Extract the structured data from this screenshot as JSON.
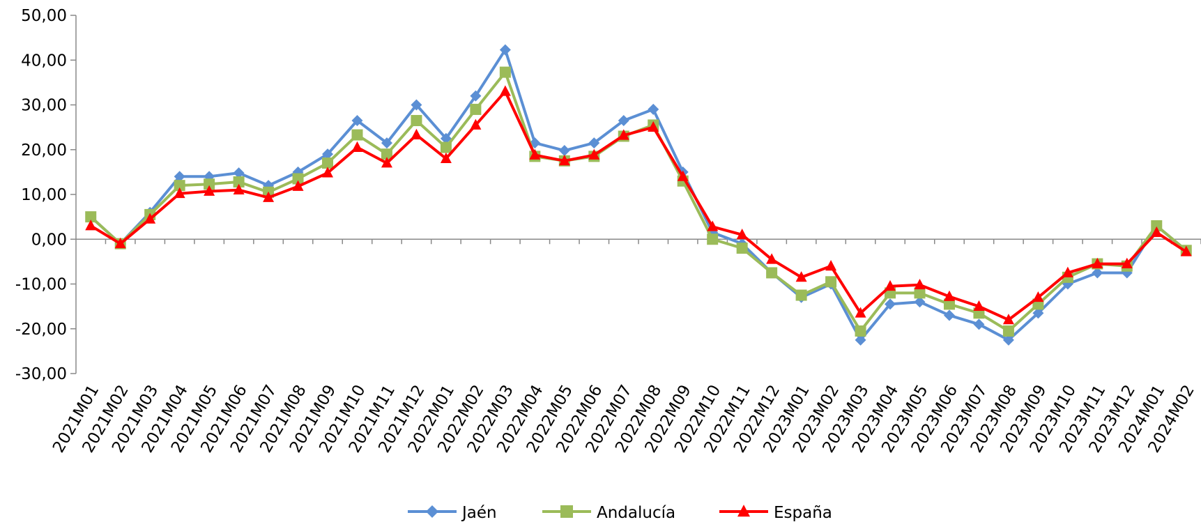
{
  "chart_data": {
    "type": "line",
    "categories": [
      "2021M01",
      "2021M02",
      "2021M03",
      "2021M04",
      "2021M05",
      "2021M06",
      "2021M07",
      "2021M08",
      "2021M09",
      "2021M10",
      "2021M11",
      "2021M12",
      "2022M01",
      "2022M02",
      "2022M03",
      "2022M04",
      "2022M05",
      "2022M06",
      "2022M07",
      "2022M08",
      "2022M09",
      "2022M10",
      "2022M11",
      "2022M12",
      "2023M01",
      "2023M02",
      "2023M03",
      "2023M04",
      "2023M05",
      "2023M06",
      "2023M07",
      "2023M08",
      "2023M09",
      "2023M10",
      "2023M11",
      "2023M12",
      "2024M01",
      "2024M02"
    ],
    "series": [
      {
        "name": "Jaén",
        "color": "#5b8fd4",
        "marker": "diamond",
        "values": [
          5,
          -1,
          6,
          14,
          14,
          14.8,
          12,
          15,
          19,
          26.5,
          21.5,
          30,
          22.5,
          32,
          42.3,
          21.5,
          19.8,
          21.5,
          26.5,
          29,
          15,
          1.5,
          -1,
          -7.5,
          -13,
          -10,
          -22.5,
          -14.5,
          -14,
          -17,
          -19,
          -22.5,
          -16.5,
          -10,
          -7.5,
          -7.5,
          3,
          -2.5
        ]
      },
      {
        "name": "Andalucía",
        "color": "#9bbb59",
        "marker": "square",
        "values": [
          5,
          -1,
          5.5,
          12,
          12.3,
          12.8,
          10.5,
          13.5,
          17,
          23.3,
          19,
          26.5,
          20.5,
          29,
          37.3,
          18.5,
          17.5,
          18.5,
          23,
          25.5,
          13,
          0,
          -2,
          -7.5,
          -12.5,
          -9.5,
          -20.5,
          -12,
          -12,
          -14.5,
          -16.5,
          -20.5,
          -14.5,
          -8.5,
          -5.5,
          -6,
          3,
          -2.5
        ]
      },
      {
        "name": "España",
        "color": "#ff0000",
        "marker": "triangle",
        "values": [
          3,
          -1,
          4.5,
          10.2,
          10.7,
          11,
          9.3,
          11.8,
          14.8,
          20.5,
          17,
          23.3,
          18,
          25.5,
          33,
          18.8,
          17.5,
          18.8,
          23.2,
          25,
          14,
          2.8,
          1,
          -4.5,
          -8.5,
          -6,
          -16.5,
          -10.5,
          -10.2,
          -12.8,
          -15,
          -18,
          -13,
          -7.5,
          -5.5,
          -5.5,
          1.5,
          -2.8
        ]
      }
    ],
    "ylim": [
      -30,
      50
    ],
    "yticks": [
      {
        "value": -30,
        "label": "-30,00"
      },
      {
        "value": -20,
        "label": "-20,00"
      },
      {
        "value": -10,
        "label": "-10,00"
      },
      {
        "value": 0,
        "label": "0,00"
      },
      {
        "value": 10,
        "label": "10,00"
      },
      {
        "value": 20,
        "label": "20,00"
      },
      {
        "value": 30,
        "label": "30,00"
      },
      {
        "value": 40,
        "label": "40,00"
      },
      {
        "value": 50,
        "label": "50,00"
      }
    ],
    "legend": "bottom"
  }
}
